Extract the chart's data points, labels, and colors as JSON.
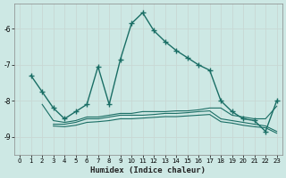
{
  "xlabel": "Humidex (Indice chaleur)",
  "bg_color": "#cde8e4",
  "line_color": "#1a6e65",
  "grid_color": "#b8d8d4",
  "xlim": [
    -0.5,
    23.5
  ],
  "ylim": [
    -9.5,
    -5.3
  ],
  "yticks": [
    -9,
    -8,
    -7,
    -6
  ],
  "xticks": [
    0,
    1,
    2,
    3,
    4,
    5,
    6,
    7,
    8,
    9,
    10,
    11,
    12,
    13,
    14,
    15,
    16,
    17,
    18,
    19,
    20,
    21,
    22,
    23
  ],
  "line1_x": [
    1,
    2,
    3,
    4,
    5,
    6,
    7,
    8,
    9,
    10,
    11,
    12,
    13,
    14,
    15,
    16,
    17,
    18,
    19,
    20,
    21,
    22,
    23
  ],
  "line1_y": [
    -7.3,
    -7.75,
    -8.2,
    -8.5,
    -8.3,
    -8.1,
    -7.05,
    -8.1,
    -6.85,
    -5.85,
    -5.55,
    -6.05,
    -6.35,
    -6.6,
    -6.8,
    -7.0,
    -7.15,
    -8.0,
    -8.3,
    -8.5,
    -8.55,
    -8.85,
    -8.0
  ],
  "line2_x": [
    2,
    3,
    4,
    5,
    6,
    7,
    8,
    9,
    10,
    11,
    12,
    13,
    14,
    15,
    16,
    17,
    18,
    19,
    20,
    21,
    22,
    23
  ],
  "line2_y": [
    -8.1,
    -8.55,
    -8.6,
    -8.55,
    -8.45,
    -8.45,
    -8.4,
    -8.35,
    -8.35,
    -8.3,
    -8.3,
    -8.3,
    -8.28,
    -8.28,
    -8.25,
    -8.2,
    -8.2,
    -8.4,
    -8.45,
    -8.5,
    -8.5,
    -8.15
  ],
  "line3_x": [
    3,
    4,
    5,
    6,
    7,
    8,
    9,
    10,
    11,
    12,
    13,
    14,
    15,
    16,
    17,
    18,
    19,
    20,
    21,
    22,
    23
  ],
  "line3_y": [
    -8.65,
    -8.65,
    -8.6,
    -8.5,
    -8.5,
    -8.45,
    -8.4,
    -8.4,
    -8.4,
    -8.38,
    -8.35,
    -8.35,
    -8.33,
    -8.3,
    -8.28,
    -8.5,
    -8.55,
    -8.6,
    -8.65,
    -8.7,
    -8.85
  ],
  "line4_x": [
    3,
    4,
    5,
    6,
    7,
    8,
    9,
    10,
    11,
    12,
    13,
    14,
    15,
    16,
    17,
    18,
    19,
    20,
    21,
    22,
    23
  ],
  "line4_y": [
    -8.7,
    -8.72,
    -8.68,
    -8.6,
    -8.58,
    -8.55,
    -8.5,
    -8.5,
    -8.48,
    -8.46,
    -8.44,
    -8.44,
    -8.42,
    -8.4,
    -8.38,
    -8.58,
    -8.62,
    -8.68,
    -8.72,
    -8.75,
    -8.9
  ]
}
